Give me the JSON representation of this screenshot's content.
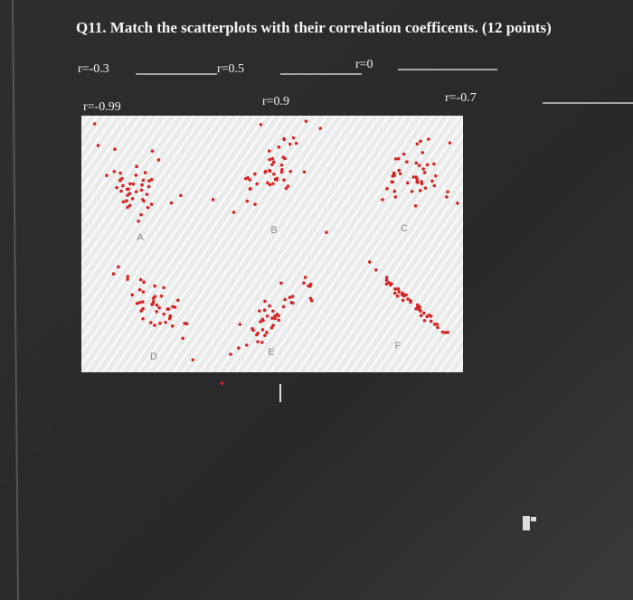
{
  "question": {
    "title": "Q11. Match the scatterplots with their correlation coefficents. (12 points)"
  },
  "answers": [
    {
      "label": "r=-0.3"
    },
    {
      "label": "r=0.5"
    },
    {
      "label": "r=0"
    },
    {
      "label": "r=-0.99"
    },
    {
      "label": "r=0.9"
    },
    {
      "label": "r=-0.7"
    }
  ],
  "panels": [
    "A",
    "B",
    "C",
    "D",
    "E",
    "F"
  ]
}
